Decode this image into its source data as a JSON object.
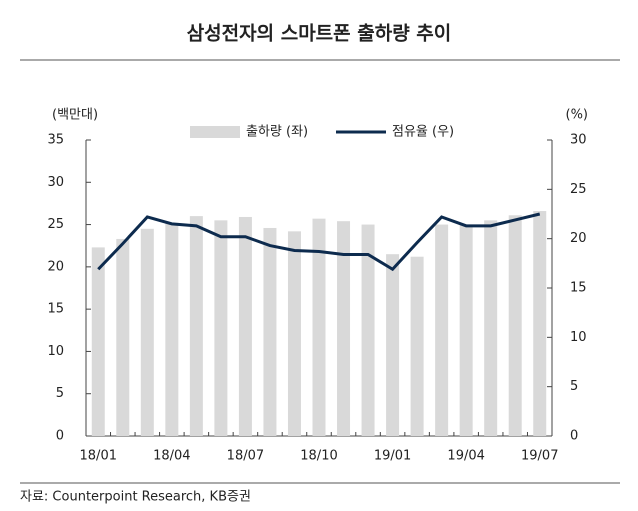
{
  "chart_data": {
    "type": "bar-line",
    "title": "삼성전자의 스마트폰 출하량 추이",
    "y_label": "(백만대)",
    "y2_label": "(%)",
    "source": "자료: Counterpoint Research, KB증권",
    "categories": [
      "18/01",
      null,
      null,
      "18/04",
      null,
      null,
      "18/07",
      null,
      null,
      "18/10",
      null,
      null,
      "19/01",
      null,
      null,
      "19/04",
      null,
      null,
      "19/07"
    ],
    "series": [
      {
        "name": "출하량 (좌)",
        "type": "bar",
        "color": "#d9d9d9",
        "values": [
          22.3,
          23.3,
          24.5,
          25.2,
          26.0,
          25.5,
          25.9,
          24.6,
          24.2,
          25.7,
          25.4,
          25.0,
          21.5,
          21.2,
          25.0,
          25.0,
          25.5,
          26.1,
          26.6
        ]
      },
      {
        "name": "점유율 (우)",
        "type": "line",
        "axis": "y2",
        "color": "#0d2b4e",
        "values": [
          16.9,
          19.5,
          22.2,
          21.5,
          21.3,
          20.2,
          20.2,
          19.3,
          18.8,
          18.7,
          18.4,
          18.4,
          16.9,
          19.6,
          22.2,
          21.3,
          21.3,
          21.9,
          22.5
        ]
      }
    ],
    "ylim": [
      0,
      35
    ],
    "yticks": [
      0,
      5,
      10,
      15,
      20,
      25,
      30,
      35
    ],
    "y2lim": [
      0,
      30
    ],
    "y2ticks": [
      0,
      5,
      10,
      15,
      20,
      25,
      30
    ]
  }
}
